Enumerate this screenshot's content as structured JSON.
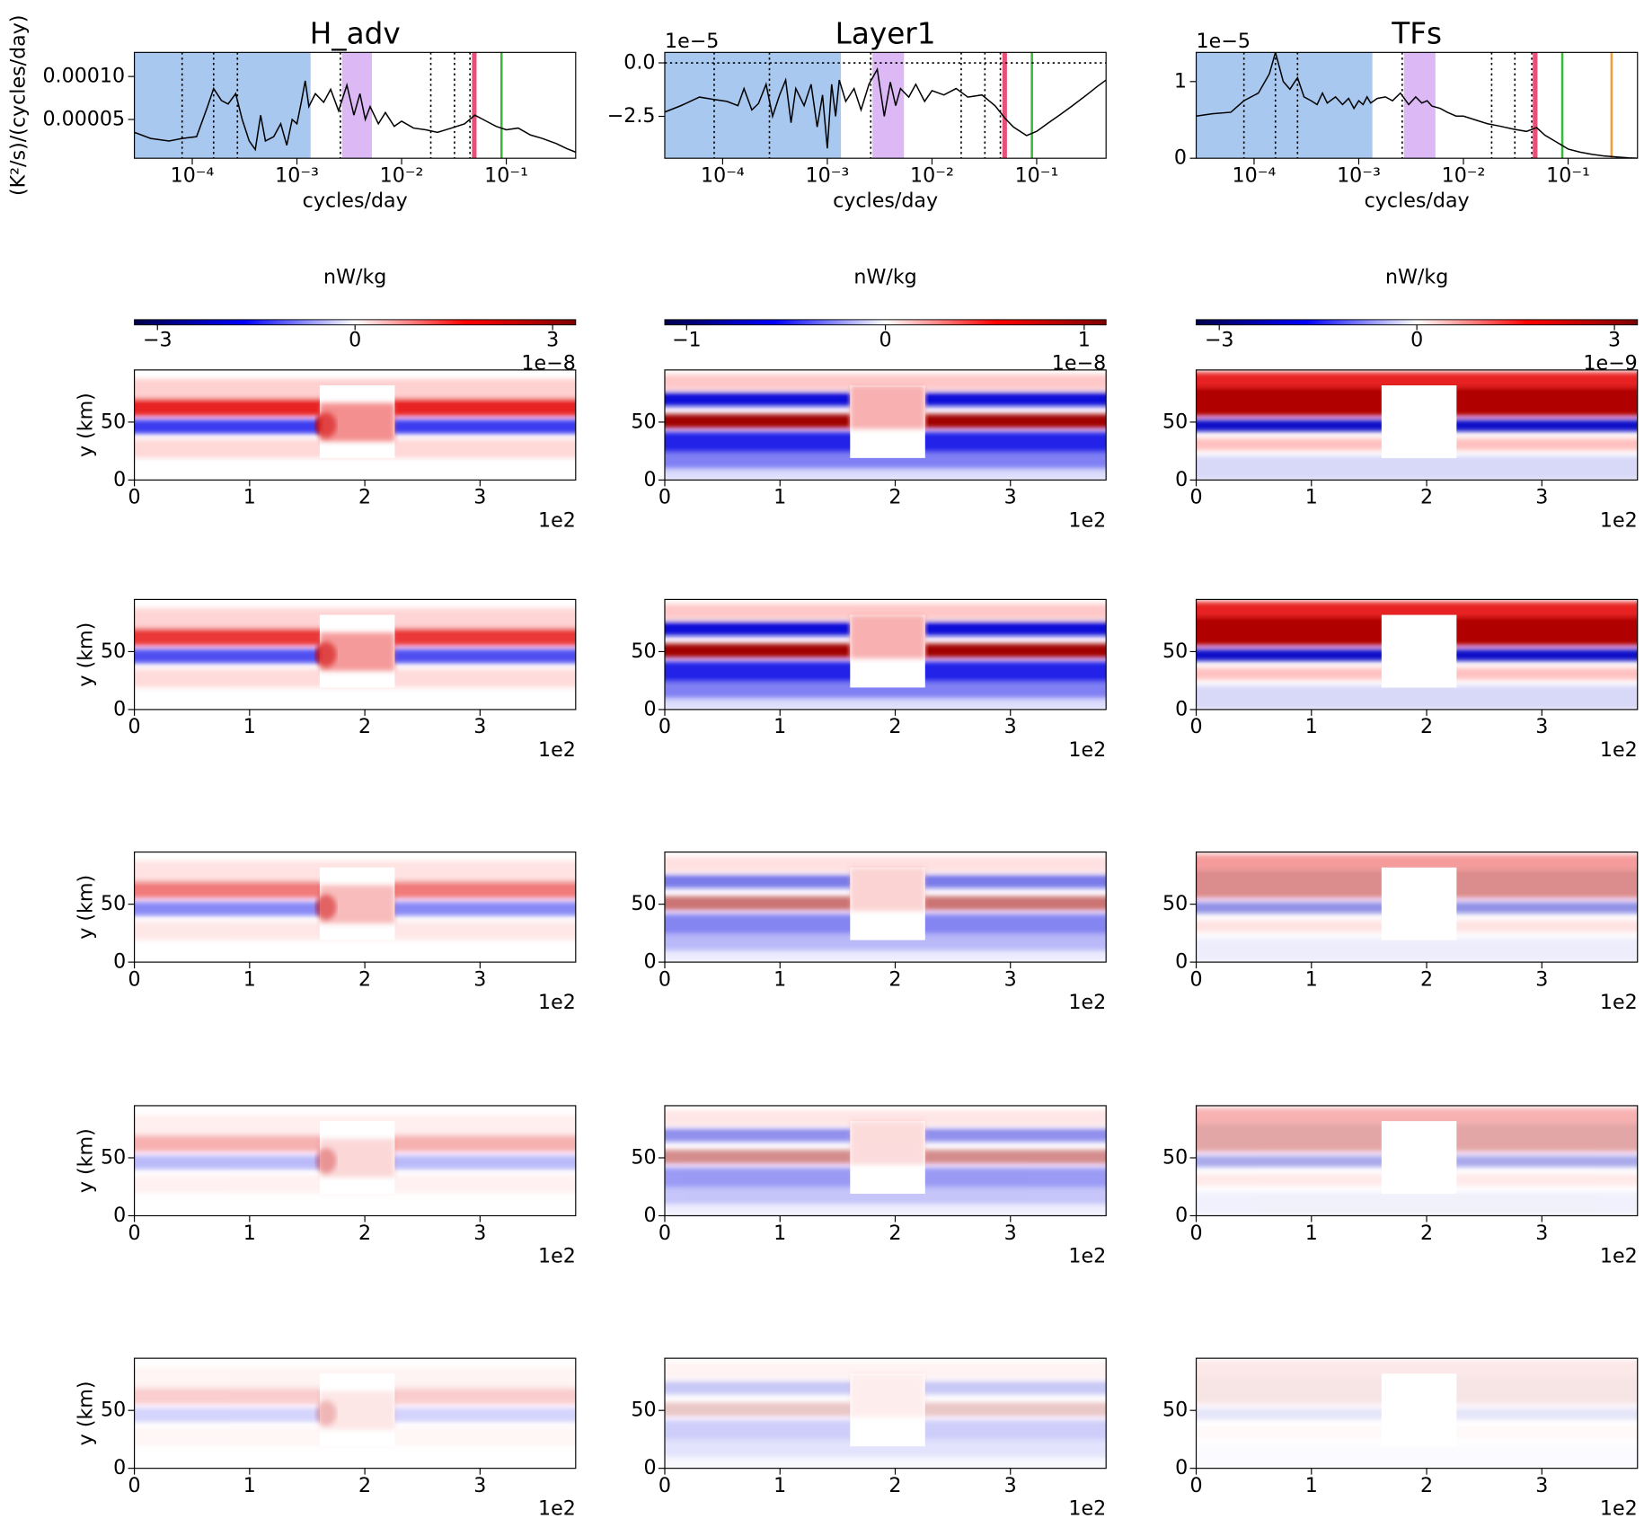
{
  "chart_data": [
    {
      "type": "line",
      "title": "H_adv",
      "xlabel": "cycles/day",
      "ylabel": "(K²/s)/(cycles/day)",
      "xscale": "log",
      "xlim": [
        2.8e-05,
        0.46
      ],
      "xticks": [
        {
          "value": 0.0001,
          "label": "10⁻⁴"
        },
        {
          "value": 0.001,
          "label": "10⁻³"
        },
        {
          "value": 0.01,
          "label": "10⁻²"
        },
        {
          "value": 0.1,
          "label": "10⁻¹"
        }
      ],
      "ylim": [
        4.9e-06,
        0.000128
      ],
      "yticks": [
        {
          "value": 0.0001,
          "label": "0.00010"
        },
        5e-05
      ],
      "bands": [
        {
          "range": [
            2.8e-05,
            0.00135
          ],
          "color": "#a8c8f0"
        },
        {
          "range": [
            0.0027,
            0.0052
          ],
          "color": "#dcb8f5"
        },
        {
          "range": [
            0.047,
            0.052
          ],
          "color": "#e8507a"
        }
      ],
      "vlines": [
        {
          "x": 8e-05,
          "color": "#000000",
          "style": "dotted"
        },
        {
          "x": 0.00016,
          "color": "#000000",
          "style": "dotted"
        },
        {
          "x": 0.00027,
          "color": "#000000",
          "style": "dotted"
        },
        {
          "x": 0.0026,
          "color": "#000000",
          "style": "dotted"
        },
        {
          "x": 0.019,
          "color": "#000000",
          "style": "dotted"
        },
        {
          "x": 0.032,
          "color": "#000000",
          "style": "dotted"
        },
        {
          "x": 0.045,
          "color": "#000000",
          "style": "dotted"
        },
        {
          "x": 0.09,
          "color": "#3cb83c",
          "style": "solid"
        }
      ],
      "series": [
        {
          "color": "#000000",
          "x": [
            2.8e-05,
            4e-05,
            6e-05,
            8e-05,
            0.00011,
            0.00014,
            0.00016,
            0.00019,
            0.00022,
            0.00026,
            0.0003,
            0.00035,
            0.0004,
            0.00045,
            0.0005,
            0.0006,
            0.0007,
            0.0008,
            0.0009,
            0.001,
            0.0011,
            0.0012,
            0.0013,
            0.0015,
            0.0018,
            0.0021,
            0.0025,
            0.003,
            0.0035,
            0.004,
            0.0045,
            0.005,
            0.006,
            0.007,
            0.0085,
            0.01,
            0.013,
            0.017,
            0.022,
            0.03,
            0.04,
            0.05,
            0.06,
            0.08,
            0.1,
            0.13,
            0.17,
            0.22,
            0.3,
            0.38,
            0.46
          ],
          "values": [
            3.5e-05,
            2.8e-05,
            2.5e-05,
            2.8e-05,
            3e-05,
            6.5e-05,
            8.6e-05,
            7.2e-05,
            6.8e-05,
            8e-05,
            5e-05,
            2.5e-05,
            1.5e-05,
            5.5e-05,
            2.5e-05,
            3e-05,
            4.5e-05,
            2e-05,
            5e-05,
            4.5e-05,
            7e-05,
            9.5e-05,
            6.5e-05,
            8e-05,
            7e-05,
            8.5e-05,
            6e-05,
            9e-05,
            5.5e-05,
            8e-05,
            5e-05,
            6.5e-05,
            4.5e-05,
            5.8e-05,
            4.2e-05,
            4.8e-05,
            4e-05,
            3.8e-05,
            3.5e-05,
            4e-05,
            4.5e-05,
            5.5e-05,
            5e-05,
            4.2e-05,
            3.8e-05,
            4e-05,
            3.2e-05,
            2.8e-05,
            2.2e-05,
            1.6e-05,
            1.2e-05
          ]
        }
      ]
    },
    {
      "type": "line",
      "title": "Layer1",
      "xlabel": "cycles/day",
      "y_offset": "1e−5",
      "xscale": "log",
      "xlim": [
        2.8e-05,
        0.46
      ],
      "xticks": [
        {
          "value": 0.0001,
          "label": "10⁻⁴"
        },
        {
          "value": 0.001,
          "label": "10⁻³"
        },
        {
          "value": 0.01,
          "label": "10⁻²"
        },
        {
          "value": 0.1,
          "label": "10⁻¹"
        }
      ],
      "ylim": [
        -4.46,
        0.49
      ],
      "yticks": [
        {
          "value": 0,
          "label": "0.0"
        },
        {
          "value": -2.5,
          "label": "−2.5"
        }
      ],
      "bands": [
        {
          "range": [
            2.8e-05,
            0.00135
          ],
          "color": "#a8c8f0"
        },
        {
          "range": [
            0.0027,
            0.0054
          ],
          "color": "#dcb8f5"
        },
        {
          "range": [
            0.047,
            0.052
          ],
          "color": "#e8507a"
        }
      ],
      "vlines": [
        {
          "x": 8.3e-05,
          "color": "#000000",
          "style": "dotted"
        },
        {
          "x": 0.00028,
          "color": "#000000",
          "style": "dotted"
        },
        {
          "x": 0.0026,
          "color": "#000000",
          "style": "dotted"
        },
        {
          "x": 0.019,
          "color": "#000000",
          "style": "dotted"
        },
        {
          "x": 0.032,
          "color": "#000000",
          "style": "dotted"
        },
        {
          "x": 0.045,
          "color": "#000000",
          "style": "dotted"
        },
        {
          "x": 0.09,
          "color": "#3cb83c",
          "style": "solid"
        }
      ],
      "hlines": [
        {
          "y": 0,
          "color": "#000000",
          "style": "dotted"
        }
      ],
      "series": [
        {
          "color": "#000000",
          "x": [
            2.8e-05,
            4e-05,
            6e-05,
            8e-05,
            0.00011,
            0.00014,
            0.00016,
            0.00019,
            0.00022,
            0.00026,
            0.0003,
            0.00035,
            0.0004,
            0.00045,
            0.0005,
            0.0006,
            0.0007,
            0.0008,
            0.0009,
            0.001,
            0.0011,
            0.0012,
            0.0013,
            0.0015,
            0.0018,
            0.0021,
            0.0025,
            0.003,
            0.0035,
            0.004,
            0.0045,
            0.005,
            0.006,
            0.007,
            0.0085,
            0.01,
            0.013,
            0.017,
            0.022,
            0.03,
            0.04,
            0.05,
            0.06,
            0.08,
            0.1,
            0.13,
            0.17,
            0.22,
            0.3,
            0.38,
            0.46
          ],
          "values": [
            -2.3,
            -2.0,
            -1.6,
            -1.7,
            -1.8,
            -2.0,
            -1.2,
            -2.2,
            -1.9,
            -1.0,
            -2.5,
            -1.5,
            -0.8,
            -2.8,
            -1.2,
            -2.0,
            -1.0,
            -3.0,
            -1.5,
            -4.0,
            -1.0,
            -2.5,
            -0.8,
            -1.8,
            -1.2,
            -2.2,
            -1.0,
            -0.3,
            -2.5,
            -0.9,
            -2.0,
            -1.2,
            -1.6,
            -1.0,
            -1.8,
            -1.3,
            -1.5,
            -1.2,
            -1.6,
            -1.5,
            -2.0,
            -2.6,
            -3.0,
            -3.4,
            -3.2,
            -2.8,
            -2.4,
            -2.0,
            -1.5,
            -1.1,
            -0.8
          ]
        }
      ]
    },
    {
      "type": "line",
      "title": "TFs",
      "xlabel": "cycles/day",
      "y_offset": "1e−5",
      "xscale": "log",
      "xlim": [
        2.8e-05,
        0.46
      ],
      "xticks": [
        {
          "value": 0.0001,
          "label": "10⁻⁴"
        },
        {
          "value": 0.001,
          "label": "10⁻³"
        },
        {
          "value": 0.01,
          "label": "10⁻²"
        },
        {
          "value": 0.1,
          "label": "10⁻¹"
        }
      ],
      "ylim": [
        0,
        1.38
      ],
      "yticks": [
        0,
        1
      ],
      "bands": [
        {
          "range": [
            2.8e-05,
            0.00135
          ],
          "color": "#a8c8f0"
        },
        {
          "range": [
            0.0027,
            0.0054
          ],
          "color": "#dcb8f5"
        },
        {
          "range": [
            0.046,
            0.051
          ],
          "color": "#e8507a"
        }
      ],
      "vlines": [
        {
          "x": 8e-05,
          "color": "#000000",
          "style": "dotted"
        },
        {
          "x": 0.00016,
          "color": "#000000",
          "style": "dotted"
        },
        {
          "x": 0.00026,
          "color": "#000000",
          "style": "dotted"
        },
        {
          "x": 0.0026,
          "color": "#000000",
          "style": "dotted"
        },
        {
          "x": 0.0186,
          "color": "#000000",
          "style": "dotted"
        },
        {
          "x": 0.031,
          "color": "#000000",
          "style": "dotted"
        },
        {
          "x": 0.045,
          "color": "#000000",
          "style": "dotted"
        },
        {
          "x": 0.088,
          "color": "#3cb83c",
          "style": "solid"
        },
        {
          "x": 0.26,
          "color": "#f0a040",
          "style": "solid"
        }
      ],
      "series": [
        {
          "color": "#000000",
          "x": [
            2.8e-05,
            4e-05,
            6e-05,
            8e-05,
            0.00011,
            0.00014,
            0.00016,
            0.00019,
            0.00022,
            0.00026,
            0.0003,
            0.00035,
            0.0004,
            0.00045,
            0.0005,
            0.0006,
            0.0007,
            0.0008,
            0.0009,
            0.001,
            0.0011,
            0.0012,
            0.0013,
            0.0015,
            0.0018,
            0.0021,
            0.0025,
            0.003,
            0.0035,
            0.004,
            0.0045,
            0.005,
            0.006,
            0.007,
            0.0085,
            0.01,
            0.013,
            0.017,
            0.022,
            0.03,
            0.04,
            0.05,
            0.06,
            0.08,
            0.1,
            0.13,
            0.17,
            0.22,
            0.3,
            0.38,
            0.46
          ],
          "values": [
            0.55,
            0.58,
            0.6,
            0.75,
            0.85,
            1.1,
            1.38,
            1.0,
            0.9,
            1.05,
            0.8,
            0.75,
            0.7,
            0.85,
            0.72,
            0.8,
            0.7,
            0.78,
            0.65,
            0.75,
            0.7,
            0.8,
            0.72,
            0.78,
            0.8,
            0.75,
            0.85,
            0.7,
            0.8,
            0.72,
            0.75,
            0.68,
            0.65,
            0.6,
            0.55,
            0.55,
            0.5,
            0.45,
            0.42,
            0.38,
            0.35,
            0.4,
            0.3,
            0.2,
            0.12,
            0.08,
            0.05,
            0.03,
            0.015,
            0.005,
            0.0
          ]
        }
      ]
    },
    {
      "type": "colorbar",
      "label": "nW/kg",
      "colormap": "seismic",
      "vlim": [
        -3.35,
        3.35
      ],
      "ticks": [
        {
          "value": -3,
          "label": "−3"
        },
        0,
        3
      ],
      "offset": "1e−8"
    },
    {
      "type": "colorbar",
      "label": "nW/kg",
      "colormap": "seismic",
      "vlim": [
        -1.11,
        1.11
      ],
      "ticks": [
        {
          "value": -1,
          "label": "−1"
        },
        0,
        1
      ],
      "offset": "1e−8"
    },
    {
      "type": "colorbar",
      "label": "nW/kg",
      "colormap": "seismic",
      "vlim": [
        -3.35,
        3.35
      ],
      "ticks": [
        {
          "value": -3,
          "label": "−3"
        },
        0,
        3
      ],
      "offset": "1e−9"
    },
    {
      "type": "heatmap",
      "ylabel": "y (km)",
      "xlim": [
        0,
        3.83
      ],
      "ylim": [
        0,
        95
      ],
      "xticks": [
        0,
        1,
        2,
        3
      ],
      "yticks": [
        0,
        50
      ],
      "x_offset": "1e2"
    },
    {
      "type": "heatmap",
      "xlim": [
        0,
        3.83
      ],
      "ylim": [
        0,
        95
      ],
      "xticks": [
        0,
        1,
        2,
        3
      ],
      "yticks": [
        0,
        50
      ],
      "x_offset": "1e2"
    },
    {
      "type": "heatmap",
      "xlim": [
        0,
        3.83
      ],
      "ylim": [
        0,
        95
      ],
      "xticks": [
        0,
        1,
        2,
        3
      ],
      "yticks": [
        0,
        50
      ],
      "x_offset": "1e2"
    },
    {
      "type": "heatmap",
      "ylabel": "y (km)",
      "xlim": [
        0,
        3.83
      ],
      "ylim": [
        0,
        95
      ],
      "xticks": [
        0,
        1,
        2,
        3
      ],
      "yticks": [
        0,
        50
      ],
      "x_offset": "1e2"
    },
    {
      "type": "heatmap",
      "xlim": [
        0,
        3.83
      ],
      "ylim": [
        0,
        95
      ],
      "xticks": [
        0,
        1,
        2,
        3
      ],
      "yticks": [
        0,
        50
      ],
      "x_offset": "1e2"
    },
    {
      "type": "heatmap",
      "xlim": [
        0,
        3.83
      ],
      "ylim": [
        0,
        95
      ],
      "xticks": [
        0,
        1,
        2,
        3
      ],
      "yticks": [
        0,
        50
      ],
      "x_offset": "1e2"
    },
    {
      "type": "heatmap",
      "ylabel": "y (km)",
      "xlim": [
        0,
        3.83
      ],
      "ylim": [
        0,
        95
      ],
      "xticks": [
        0,
        1,
        2,
        3
      ],
      "yticks": [
        0,
        50
      ],
      "x_offset": "1e2"
    },
    {
      "type": "heatmap",
      "xlim": [
        0,
        3.83
      ],
      "ylim": [
        0,
        95
      ],
      "xticks": [
        0,
        1,
        2,
        3
      ],
      "yticks": [
        0,
        50
      ],
      "x_offset": "1e2"
    },
    {
      "type": "heatmap",
      "xlim": [
        0,
        3.83
      ],
      "ylim": [
        0,
        95
      ],
      "xticks": [
        0,
        1,
        2,
        3
      ],
      "yticks": [
        0,
        50
      ],
      "x_offset": "1e2"
    },
    {
      "type": "heatmap",
      "ylabel": "y (km)",
      "xlim": [
        0,
        3.83
      ],
      "ylim": [
        0,
        95
      ],
      "xticks": [
        0,
        1,
        2,
        3
      ],
      "yticks": [
        0,
        50
      ],
      "x_offset": "1e2"
    },
    {
      "type": "heatmap",
      "xlim": [
        0,
        3.83
      ],
      "ylim": [
        0,
        95
      ],
      "xticks": [
        0,
        1,
        2,
        3
      ],
      "yticks": [
        0,
        50
      ],
      "x_offset": "1e2"
    },
    {
      "type": "heatmap",
      "xlim": [
        0,
        3.83
      ],
      "ylim": [
        0,
        95
      ],
      "xticks": [
        0,
        1,
        2,
        3
      ],
      "yticks": [
        0,
        50
      ],
      "x_offset": "1e2"
    },
    {
      "type": "heatmap",
      "ylabel": "y (km)",
      "xlim": [
        0,
        3.83
      ],
      "ylim": [
        0,
        95
      ],
      "xticks": [
        0,
        1,
        2,
        3
      ],
      "yticks": [
        0,
        50
      ],
      "x_offset": "1e2"
    },
    {
      "type": "heatmap",
      "xlim": [
        0,
        3.83
      ],
      "ylim": [
        0,
        95
      ],
      "xticks": [
        0,
        1,
        2,
        3
      ],
      "yticks": [
        0,
        50
      ],
      "x_offset": "1e2"
    },
    {
      "type": "heatmap",
      "xlim": [
        0,
        3.83
      ],
      "ylim": [
        0,
        95
      ],
      "xticks": [
        0,
        1,
        2,
        3
      ],
      "yticks": [
        0,
        50
      ],
      "x_offset": "1e2"
    }
  ]
}
